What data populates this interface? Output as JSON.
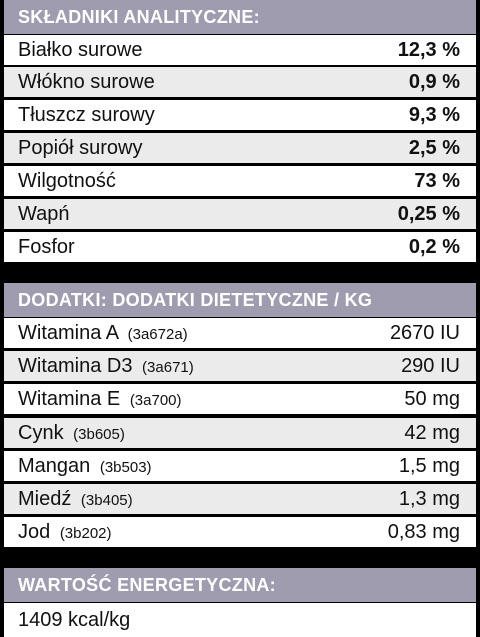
{
  "analytical": {
    "header": "SKŁADNIKI ANALITYCZNE:",
    "rows": [
      {
        "name": "Białko surowe",
        "value": "12,3 %"
      },
      {
        "name": "Włókno surowe",
        "value": "0,9 %"
      },
      {
        "name": "Tłuszcz surowy",
        "value": "9,3 %"
      },
      {
        "name": "Popiół surowy",
        "value": "2,5 %"
      },
      {
        "name": "Wilgotność",
        "value": "73 %"
      },
      {
        "name": "Wapń",
        "value": "0,25 %"
      },
      {
        "name": "Fosfor",
        "value": "0,2 %"
      }
    ]
  },
  "additives": {
    "header": "DODATKI: DODATKI DIETETYCZNE / KG",
    "rows": [
      {
        "name": "Witamina A",
        "code": "(3a672a)",
        "value": "2670 IU"
      },
      {
        "name": "Witamina D3",
        "code": "(3a671)",
        "value": "290 IU"
      },
      {
        "name": "Witamina E",
        "code": "(3a700)",
        "value": "50 mg"
      },
      {
        "name": "Cynk",
        "code": "(3b605)",
        "value": "42 mg"
      },
      {
        "name": "Mangan",
        "code": "(3b503)",
        "value": "1,5 mg"
      },
      {
        "name": "Miedź",
        "code": "(3b405)",
        "value": "1,3 mg"
      },
      {
        "name": "Jod",
        "code": "(3b202)",
        "value": "0,83 mg"
      }
    ]
  },
  "energy": {
    "header": "WARTOŚĆ ENERGETYCZNA:",
    "value": "1409 kcal/kg"
  }
}
